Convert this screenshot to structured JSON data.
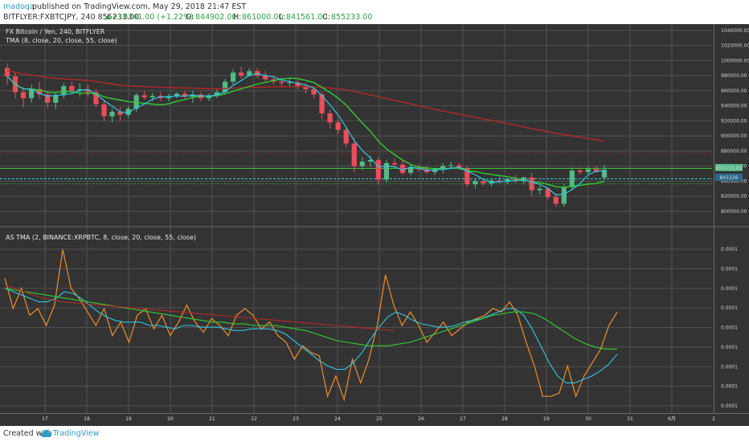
{
  "header": {
    "author": "madoqa",
    "published": "published on TradingView.com, May 29, 2018 21:47 EST",
    "symbol_line": "BITFLYER:FXBTCJPY, 240 855233.00",
    "change": "+10341.00 (+1.22%)",
    "ohlc": [
      {
        "label": "O:",
        "value": "844902.00"
      },
      {
        "label": "H:",
        "value": "861000.00"
      },
      {
        "label": "L:",
        "value": "841561.00"
      },
      {
        "label": "C:",
        "value": "855233.00"
      }
    ]
  },
  "footer": {
    "created_with": "Created with",
    "brand": "TradingView"
  },
  "colors": {
    "background": "#333333",
    "grid": "#505050",
    "up": "#53b987",
    "down": "#eb4d5c",
    "cyan": "#2ec8e6",
    "green": "#33cc33",
    "red": "#b42828",
    "orange": "#f08c28",
    "text": "#cfcfcf"
  },
  "chart_data": [
    {
      "type": "candlestick",
      "title": "FX Bitcoin / Yen, 240, BITFLYER",
      "indicator": "TMA (8, close, 20, close, 55, close)",
      "x_ticks": [
        "17",
        "18",
        "19",
        "20",
        "21",
        "22",
        "23",
        "24",
        "25",
        "26",
        "27",
        "28",
        "29",
        "30",
        "31",
        "6月",
        "2"
      ],
      "y_ticks": [
        1040000,
        1020000,
        1000000,
        980000,
        960000,
        940000,
        920000,
        900000,
        880000,
        860000,
        840000,
        820000,
        800000
      ],
      "ylim": [
        784000,
        1044000
      ],
      "last_price": "855233.00",
      "price_label_2": "841226",
      "horizontal_lines": [
        {
          "value": 877000,
          "color": "#b42828",
          "style": "dotted"
        },
        {
          "value": 857000,
          "color": "#33cc33",
          "style": "solid"
        },
        {
          "value": 843200,
          "color": "#2ec8e6",
          "style": "dashed"
        },
        {
          "value": 836500,
          "color": "#33cc33",
          "style": "dotted"
        }
      ],
      "candles": [
        [
          990000,
          996000,
          968000,
          979000
        ],
        [
          979000,
          985000,
          950000,
          958000
        ],
        [
          958000,
          965000,
          938000,
          950000
        ],
        [
          950000,
          968000,
          944000,
          962000
        ],
        [
          962000,
          972000,
          949000,
          955000
        ],
        [
          955000,
          960000,
          937000,
          944000
        ],
        [
          944000,
          958000,
          935000,
          954000
        ],
        [
          954000,
          970000,
          950000,
          966000
        ],
        [
          966000,
          972000,
          956000,
          960000
        ],
        [
          960000,
          970000,
          952000,
          962000
        ],
        [
          962000,
          968000,
          952000,
          958000
        ],
        [
          958000,
          962000,
          938000,
          942000
        ],
        [
          942000,
          948000,
          920000,
          926000
        ],
        [
          926000,
          936000,
          918000,
          932000
        ],
        [
          932000,
          938000,
          920000,
          928000
        ],
        [
          928000,
          940000,
          924000,
          936000
        ],
        [
          936000,
          957000,
          932000,
          954000
        ],
        [
          954000,
          960000,
          948000,
          951000
        ],
        [
          951000,
          957000,
          946000,
          953000
        ],
        [
          953000,
          958000,
          946000,
          950000
        ],
        [
          950000,
          956000,
          946000,
          953000
        ],
        [
          953000,
          958000,
          950000,
          956000
        ],
        [
          956000,
          960000,
          949000,
          952000
        ],
        [
          952000,
          960000,
          944000,
          955000
        ],
        [
          955000,
          958000,
          946000,
          950000
        ],
        [
          950000,
          956000,
          946000,
          954000
        ],
        [
          954000,
          962000,
          950000,
          958000
        ],
        [
          958000,
          976000,
          955000,
          972000
        ],
        [
          972000,
          989000,
          968000,
          984000
        ],
        [
          984000,
          992000,
          976000,
          980000
        ],
        [
          980000,
          990000,
          978000,
          986000
        ],
        [
          986000,
          990000,
          976000,
          980000
        ],
        [
          980000,
          986000,
          970000,
          975000
        ],
        [
          975000,
          980000,
          968000,
          972000
        ],
        [
          972000,
          978000,
          966000,
          970000
        ],
        [
          970000,
          976000,
          966000,
          971000
        ],
        [
          971000,
          974000,
          962000,
          966000
        ],
        [
          966000,
          970000,
          956000,
          962000
        ],
        [
          962000,
          966000,
          950000,
          955000
        ],
        [
          955000,
          958000,
          922000,
          930000
        ],
        [
          930000,
          935000,
          910000,
          918000
        ],
        [
          918000,
          922000,
          902000,
          908000
        ],
        [
          908000,
          912000,
          885000,
          890000
        ],
        [
          890000,
          898000,
          852000,
          860000
        ],
        [
          860000,
          872000,
          855000,
          866000
        ],
        [
          866000,
          874000,
          860000,
          868000
        ],
        [
          868000,
          871000,
          836000,
          842000
        ],
        [
          842000,
          868000,
          838000,
          864000
        ],
        [
          864000,
          870000,
          858000,
          862000
        ],
        [
          862000,
          868000,
          848000,
          851000
        ],
        [
          851000,
          862000,
          848000,
          858000
        ],
        [
          858000,
          863000,
          852000,
          856000
        ],
        [
          856000,
          860000,
          850000,
          852000
        ],
        [
          852000,
          858000,
          848000,
          855000
        ],
        [
          855000,
          864000,
          850000,
          860000
        ],
        [
          860000,
          866000,
          856000,
          861000
        ],
        [
          861000,
          864000,
          855000,
          857000
        ],
        [
          857000,
          860000,
          832000,
          836000
        ],
        [
          836000,
          843000,
          830000,
          840000
        ],
        [
          840000,
          844000,
          834000,
          837000
        ],
        [
          837000,
          843000,
          833000,
          841000
        ],
        [
          841000,
          846000,
          836000,
          839000
        ],
        [
          839000,
          844000,
          836000,
          843000
        ],
        [
          843000,
          848000,
          838000,
          840000
        ],
        [
          840000,
          846000,
          836000,
          845000
        ],
        [
          845000,
          851000,
          820000,
          828000
        ],
        [
          828000,
          834000,
          822000,
          830000
        ],
        [
          830000,
          832000,
          816000,
          819000
        ],
        [
          819000,
          824000,
          806000,
          810000
        ],
        [
          810000,
          836000,
          806000,
          832000
        ],
        [
          832000,
          858000,
          829000,
          854000
        ],
        [
          854000,
          858000,
          849000,
          852000
        ],
        [
          852000,
          860000,
          848000,
          856000
        ],
        [
          856000,
          860000,
          851000,
          852000
        ],
        [
          844902,
          861000,
          841561,
          855233
        ]
      ]
    },
    {
      "type": "line",
      "title": "AS TMA (2, BINANCE:XRPBTC, 8, close, 20, close, 55, close)",
      "y_tick_labels": [
        "0.0001",
        "0.0001",
        "0.0001",
        "0.0001",
        "0.0001",
        "0.0001",
        "0.0001",
        "0.0001",
        "0.0001"
      ],
      "x_ticks": [
        "17",
        "18",
        "19",
        "20",
        "21",
        "22",
        "23",
        "24",
        "25",
        "26",
        "27",
        "28",
        "29",
        "30",
        "31",
        "6月",
        "2"
      ],
      "ylim": [
        0,
        1
      ],
      "series": [
        {
          "color": "#f08c28",
          "values": [
            0.78,
            0.6,
            0.72,
            0.56,
            0.6,
            0.5,
            0.62,
            0.95,
            0.72,
            0.66,
            0.58,
            0.5,
            0.6,
            0.44,
            0.52,
            0.4,
            0.56,
            0.6,
            0.48,
            0.56,
            0.44,
            0.52,
            0.62,
            0.52,
            0.46,
            0.54,
            0.5,
            0.44,
            0.56,
            0.6,
            0.56,
            0.48,
            0.52,
            0.44,
            0.4,
            0.3,
            0.38,
            0.34,
            0.32,
            0.08,
            0.2,
            0.06,
            0.3,
            0.16,
            0.3,
            0.5,
            0.8,
            0.62,
            0.5,
            0.58,
            0.5,
            0.4,
            0.46,
            0.52,
            0.44,
            0.48,
            0.52,
            0.54,
            0.56,
            0.6,
            0.58,
            0.64,
            0.56,
            0.4,
            0.26,
            0.08,
            0.08,
            0.1,
            0.26,
            0.08,
            0.2,
            0.28,
            0.36,
            0.5,
            0.58
          ]
        },
        {
          "color": "#2ec8e6",
          "values": [
            0.72,
            0.7,
            0.68,
            0.66,
            0.64,
            0.64,
            0.66,
            0.7,
            0.69,
            0.66,
            0.62,
            0.58,
            0.55,
            0.53,
            0.52,
            0.52,
            0.52,
            0.5,
            0.5,
            0.49,
            0.48,
            0.5,
            0.5,
            0.49,
            0.49,
            0.49,
            0.48,
            0.47,
            0.47,
            0.48,
            0.48,
            0.48,
            0.47,
            0.45,
            0.41,
            0.37,
            0.33,
            0.29,
            0.26,
            0.24,
            0.24,
            0.28,
            0.34,
            0.42,
            0.49,
            0.55,
            0.58,
            0.56,
            0.53,
            0.51,
            0.5,
            0.49,
            0.49,
            0.5,
            0.52,
            0.53,
            0.54,
            0.56,
            0.58,
            0.6,
            0.6,
            0.56,
            0.48,
            0.38,
            0.28,
            0.2,
            0.16,
            0.16,
            0.18,
            0.2,
            0.23,
            0.27,
            0.33
          ]
        },
        {
          "color": "#33cc33",
          "values": [
            0.72,
            0.71,
            0.7,
            0.69,
            0.68,
            0.67,
            0.66,
            0.65,
            0.64,
            0.63,
            0.62,
            0.61,
            0.6,
            0.59,
            0.58,
            0.57,
            0.56,
            0.55,
            0.54,
            0.53,
            0.52,
            0.52,
            0.51,
            0.51,
            0.5,
            0.5,
            0.5,
            0.49,
            0.48,
            0.47,
            0.45,
            0.43,
            0.41,
            0.4,
            0.39,
            0.38,
            0.38,
            0.38,
            0.39,
            0.4,
            0.42,
            0.44,
            0.46,
            0.48,
            0.5,
            0.52,
            0.54,
            0.56,
            0.57,
            0.58,
            0.58,
            0.57,
            0.54,
            0.5,
            0.46,
            0.42,
            0.39,
            0.37,
            0.36,
            0.36
          ]
        },
        {
          "color": "#b42828",
          "values": [
            0.74,
            0.7,
            0.66,
            0.64,
            0.63,
            0.62,
            0.61,
            0.6,
            0.59,
            0.58,
            0.57,
            0.56,
            0.55,
            0.54,
            0.53,
            0.52,
            0.51,
            0.5,
            0.49,
            0.48,
            0.47
          ]
        }
      ]
    }
  ]
}
